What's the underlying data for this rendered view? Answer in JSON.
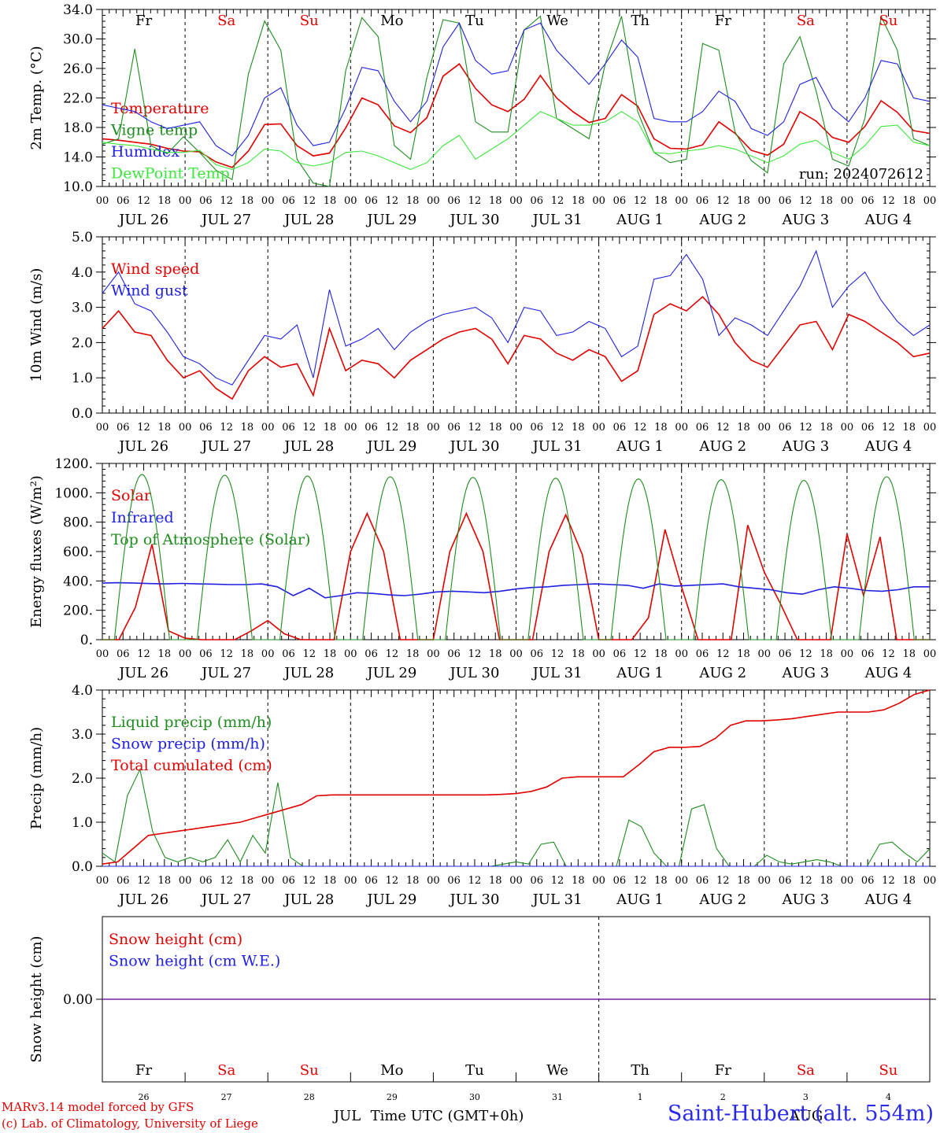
{
  "xaxis": {
    "hour_ticks": [
      "00",
      "06",
      "12",
      "18"
    ],
    "date_labels": [
      "JUL 26",
      "JUL 27",
      "JUL 28",
      "JUL 29",
      "JUL 30",
      "JUL 31",
      "AUG  1",
      "AUG  2",
      "AUG  3",
      "AUG  4"
    ],
    "days": [
      "Fr",
      "Sa",
      "Su",
      "Mo",
      "Tu",
      "We",
      "Th",
      "Fr",
      "Sa",
      "Su"
    ],
    "day_numbers": [
      "26",
      "27",
      "28",
      "29",
      "30",
      "31",
      "1",
      "2",
      "3",
      "4"
    ],
    "bottom_month_left": "JUL",
    "bottom_month_right": "AUG",
    "xlabel": "Time UTC (GMT+0h)"
  },
  "colors": {
    "weekday": "#000000",
    "weekend": "#e00000",
    "red": "#e00000",
    "green": "#1e8c1e",
    "blue": "#2020e0",
    "lightgreen": "#3ce63c",
    "purple": "#7a1fa2"
  },
  "footer": {
    "credit_line1": "MARv3.14 model forced by GFS",
    "credit_line2": "(c) Lab. of Climatology, University of Liege",
    "station": "Saint-Hubert (alt. 554m)"
  },
  "chart_data": [
    {
      "type": "line",
      "ylabel": "2m Temp. (°C)",
      "ylim": [
        10,
        36
      ],
      "yticks": [
        "10.0",
        "14.0",
        "18.0",
        "22.0",
        "26.0",
        "30.0",
        "34.0"
      ],
      "run_label": "run: 2024072612",
      "series": [
        {
          "name": "Temperature",
          "color": "#e00000",
          "values": [
            17,
            16.8,
            16.5,
            16.2,
            15.6,
            15.2,
            15.1,
            13.6,
            12.8,
            15.2,
            19.1,
            19.2,
            16,
            14.5,
            14.9,
            18.6,
            23,
            22,
            18.9,
            17.9,
            20.1,
            26.2,
            28,
            24.4,
            22,
            21,
            22.8,
            26.3,
            23,
            21,
            19.4,
            20,
            23.5,
            21.8,
            17,
            15.6,
            15.5,
            16.1,
            19.5,
            17.8,
            15.3,
            14.6,
            16.2,
            21,
            19.6,
            17.2,
            16.5,
            18.8,
            22.6,
            20.9,
            18.2,
            17.8
          ]
        },
        {
          "name": "Vigne temp",
          "color": "#1e8c1e",
          "values": [
            16.2,
            17,
            30.2,
            16,
            14.8,
            17.3,
            15,
            12.4,
            11,
            26.5,
            34.3,
            30,
            14,
            10.5,
            8,
            27,
            34.8,
            32,
            16,
            14,
            26,
            34.5,
            34,
            19.5,
            18,
            18,
            33,
            35,
            20,
            18.5,
            17,
            28,
            35,
            21,
            15,
            13.5,
            14,
            31,
            30,
            18,
            13.8,
            12,
            28,
            32,
            24,
            14,
            13,
            20,
            35,
            30,
            17,
            16
          ]
        },
        {
          "name": "Humidex",
          "color": "#2020e0",
          "values": [
            22,
            21.5,
            21,
            19.5,
            18.5,
            19,
            19.5,
            16,
            14.5,
            17.5,
            23,
            24.5,
            19,
            16,
            16.5,
            21.5,
            27.5,
            27,
            22.5,
            19.5,
            22.5,
            30.5,
            34,
            28.5,
            26.5,
            27,
            33,
            34,
            30,
            27.5,
            25,
            28,
            31.5,
            29,
            20,
            19.5,
            19.5,
            21,
            24,
            22.5,
            18.5,
            17.5,
            19.5,
            25,
            26,
            21.5,
            19.5,
            23,
            28.5,
            28,
            23,
            22.5
          ]
        },
        {
          "name": "DewPoint Temp",
          "color": "#3ce63c",
          "values": [
            16.5,
            16.2,
            16,
            15.5,
            15,
            15,
            15.3,
            13.2,
            12.5,
            13.5,
            15.5,
            15.2,
            13.5,
            13,
            13.5,
            15,
            15.2,
            14.5,
            13.5,
            12.5,
            13.5,
            16,
            17.5,
            14,
            15.5,
            17,
            19,
            21,
            20,
            19,
            19,
            19.5,
            21,
            19.5,
            15,
            14.8,
            15.2,
            15.5,
            16,
            15.5,
            14.5,
            13.5,
            14.5,
            16.2,
            16.8,
            15,
            14,
            16,
            18.8,
            19,
            16.5,
            16
          ]
        }
      ]
    },
    {
      "type": "line",
      "ylabel": "10m Wind (m/s)",
      "ylim": [
        0,
        5
      ],
      "yticks": [
        "0.0",
        "1.0",
        "2.0",
        "3.0",
        "4.0",
        "5.0"
      ],
      "series": [
        {
          "name": "Wind speed",
          "color": "#e00000",
          "values": [
            2.4,
            2.9,
            2.3,
            2.2,
            1.5,
            1,
            1.2,
            0.7,
            0.4,
            1.2,
            1.6,
            1.3,
            1.4,
            0.5,
            2.4,
            1.2,
            1.5,
            1.4,
            1,
            1.5,
            1.8,
            2.1,
            2.3,
            2.4,
            2.1,
            1.4,
            2.2,
            2.1,
            1.7,
            1.5,
            1.8,
            1.6,
            0.9,
            1.2,
            2.8,
            3.1,
            2.9,
            3.3,
            2.8,
            2,
            1.5,
            1.3,
            1.9,
            2.5,
            2.6,
            1.8,
            2.8,
            2.6,
            2.3,
            2,
            1.6,
            1.7
          ]
        },
        {
          "name": "Wind gust",
          "color": "#2020e0",
          "values": [
            3.4,
            4,
            3.1,
            2.9,
            2.3,
            1.6,
            1.4,
            1,
            0.8,
            1.5,
            2.2,
            2.1,
            2.5,
            1,
            3.5,
            1.9,
            2.1,
            2.4,
            1.8,
            2.3,
            2.6,
            2.8,
            2.9,
            3,
            2.7,
            2,
            3,
            2.9,
            2.2,
            2.3,
            2.6,
            2.4,
            1.6,
            1.9,
            3.8,
            3.9,
            4.5,
            3.8,
            2.2,
            2.7,
            2.5,
            2.2,
            2.9,
            3.6,
            4.6,
            3,
            3.6,
            4,
            3.2,
            2.6,
            2.2,
            2.5
          ]
        }
      ]
    },
    {
      "type": "line",
      "ylabel": "Energy fluxes (W/m²)",
      "ylim": [
        0,
        1200
      ],
      "yticks": [
        "0.",
        "200.",
        "400.",
        "600.",
        "800.",
        "1000.",
        "1200."
      ],
      "series": [
        {
          "name": "Solar",
          "color": "#e00000",
          "values": [
            0,
            0,
            220,
            650,
            60,
            10,
            0,
            0,
            0,
            60,
            130,
            40,
            0,
            0,
            0,
            600,
            860,
            600,
            0,
            0,
            0,
            600,
            860,
            600,
            0,
            0,
            0,
            600,
            850,
            580,
            0,
            0,
            0,
            150,
            750,
            360,
            0,
            0,
            0,
            780,
            460,
            240,
            0,
            0,
            0,
            720,
            300,
            700,
            0,
            0,
            0
          ]
        },
        {
          "name": "Infrared",
          "color": "#2020e0",
          "values": [
            385,
            388,
            385,
            382,
            380,
            383,
            380,
            378,
            375,
            375,
            380,
            360,
            300,
            350,
            285,
            300,
            320,
            315,
            305,
            300,
            310,
            325,
            330,
            325,
            320,
            330,
            345,
            355,
            360,
            370,
            375,
            380,
            375,
            370,
            350,
            380,
            365,
            370,
            375,
            380,
            360,
            350,
            340,
            320,
            310,
            340,
            360,
            350,
            335,
            330,
            340,
            360,
            360
          ]
        },
        {
          "name": "Top of Atmosphere (Solar)",
          "color": "#1e8c1e",
          "values": [
            1125,
            1120,
            1115,
            1110,
            1105,
            1100,
            1095,
            1090,
            1085,
            1110
          ]
        }
      ]
    },
    {
      "type": "line",
      "ylabel": "Precip (mm/h)",
      "ylim": [
        0,
        4
      ],
      "yticks": [
        "0.0",
        "1.0",
        "2.0",
        "3.0",
        "4.0"
      ],
      "series": [
        {
          "name": "Liquid precip (mm/h)",
          "color": "#1e8c1e",
          "values": [
            0.3,
            0.1,
            1.6,
            2.2,
            0.8,
            0.2,
            0.1,
            0.2,
            0.1,
            0.2,
            0.6,
            0.1,
            0.7,
            0.3,
            1.9,
            0.2,
            0,
            0,
            0,
            0,
            0,
            0,
            0,
            0,
            0,
            0,
            0,
            0,
            0,
            0,
            0,
            0,
            0.05,
            0.1,
            0.05,
            0.5,
            0.55,
            0,
            0,
            0,
            0,
            0,
            1.05,
            0.9,
            0.3,
            0,
            0,
            1.3,
            1.4,
            0.4,
            0,
            0,
            0,
            0.25,
            0.1,
            0.05,
            0.1,
            0.15,
            0.1,
            0,
            0,
            0,
            0.5,
            0.55,
            0.3,
            0.1,
            0.4
          ]
        },
        {
          "name": "Snow precip (mm/h)",
          "color": "#2020e0",
          "values": [
            0
          ]
        },
        {
          "name": "Total cumulated (cm)",
          "color": "#e00000",
          "values": [
            0.05,
            0.1,
            0.4,
            0.7,
            0.75,
            0.8,
            0.85,
            0.9,
            0.95,
            1.0,
            1.1,
            1.2,
            1.3,
            1.4,
            1.6,
            1.62,
            1.62,
            1.62,
            1.62,
            1.62,
            1.62,
            1.62,
            1.62,
            1.62,
            1.62,
            1.62,
            1.63,
            1.65,
            1.7,
            1.8,
            2.0,
            2.03,
            2.03,
            2.03,
            2.03,
            2.3,
            2.6,
            2.7,
            2.7,
            2.72,
            2.9,
            3.2,
            3.3,
            3.3,
            3.32,
            3.35,
            3.4,
            3.45,
            3.5,
            3.5,
            3.5,
            3.55,
            3.7,
            3.9,
            4.0
          ]
        }
      ]
    },
    {
      "type": "line",
      "ylabel": "Snow height (cm)",
      "yticks": [
        "0.00"
      ],
      "series": [
        {
          "name": "Snow height (cm)",
          "color": "#e00000",
          "values": [
            0,
            0
          ]
        },
        {
          "name": "Snow height (cm W.E.)",
          "color": "#2020e0",
          "values": [
            0,
            0
          ]
        }
      ]
    }
  ]
}
